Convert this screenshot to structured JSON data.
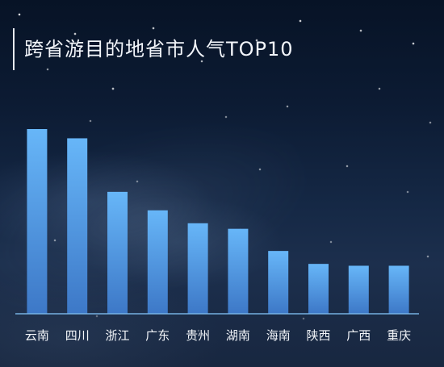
{
  "title": "跨省游目的地省市人气TOP10",
  "colors": {
    "bar_top": "#67b6f8",
    "bar_bottom": "#3d78c7",
    "axis": "#7ab8ea",
    "text": "#f1f4f8"
  },
  "chart_data": {
    "type": "bar",
    "title": "跨省游目的地省市人气TOP10",
    "categories": [
      "云南",
      "四川",
      "浙江",
      "广东",
      "贵州",
      "湖南",
      "海南",
      "陕西",
      "广西",
      "重庆"
    ],
    "values": [
      100,
      95,
      66,
      56,
      49,
      46,
      34,
      27,
      26,
      26
    ],
    "ylim": [
      0,
      100
    ],
    "grid": false,
    "legend": "none"
  }
}
